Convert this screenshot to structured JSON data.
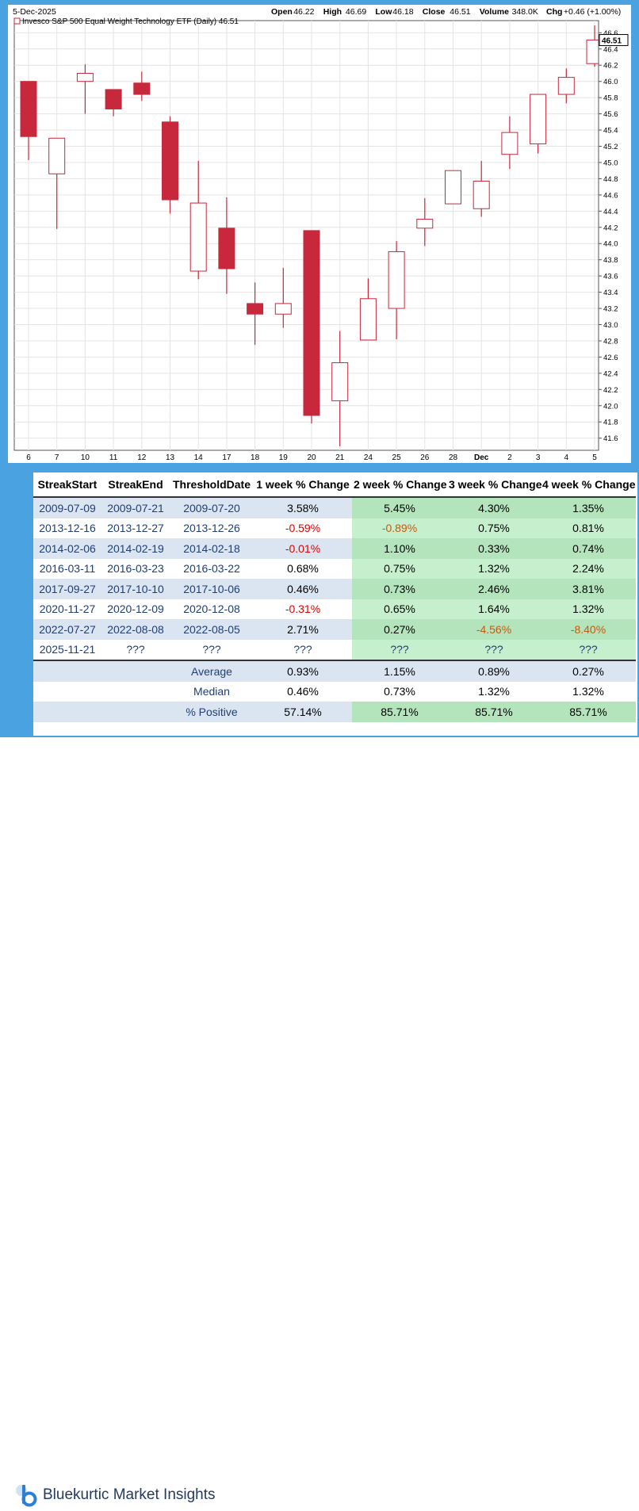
{
  "header": {
    "date": "5-Dec-2025",
    "open_label": "Open",
    "open": "46.22",
    "high_label": "High",
    "high": "46.69",
    "low_label": "Low",
    "low": "46.18",
    "close_label": "Close",
    "close": "46.51",
    "volume_label": "Volume",
    "volume": "348.0K",
    "chg_label": "Chg",
    "chg": "+0.46 (+1.00%)",
    "legend": "Invesco S&P 500 Equal Weight Technology ETF (Daily) 46.51",
    "last_price": "46.51"
  },
  "chart_data": {
    "type": "candlestick",
    "title": "Invesco S&P 500 Equal Weight Technology ETF (Daily)",
    "ylim": [
      41.45,
      46.75
    ],
    "yticks": [
      41.6,
      41.8,
      42.0,
      42.2,
      42.4,
      42.6,
      42.8,
      43.0,
      43.2,
      43.4,
      43.6,
      43.8,
      44.0,
      44.2,
      44.4,
      44.6,
      44.8,
      45.0,
      45.2,
      45.4,
      45.6,
      45.8,
      46.0,
      46.2,
      46.4,
      46.6
    ],
    "ytick_labels": [
      "41.6",
      "41.8",
      "42.0",
      "42.2",
      "42.4",
      "42.6",
      "42.8",
      "43.0",
      "43.2",
      "43.4",
      "43.6",
      "43.8",
      "44.0",
      "44.2",
      "44.4",
      "44.6",
      "44.8",
      "45.0",
      "45.2",
      "45.4",
      "45.6",
      "45.8",
      "46.0",
      "46.2",
      "46.4",
      "46.6"
    ],
    "x_labels": [
      "6",
      "7",
      "10",
      "11",
      "12",
      "13",
      "14",
      "17",
      "18",
      "19",
      "20",
      "21",
      "24",
      "25",
      "26",
      "28",
      "Dec",
      "2",
      "3",
      "4",
      "5"
    ],
    "candles": [
      {
        "date": "6",
        "open": 46.0,
        "high": 46.0,
        "low": 45.03,
        "close": 45.32
      },
      {
        "date": "7",
        "open": 44.86,
        "high": 45.3,
        "low": 44.18,
        "close": 45.3
      },
      {
        "date": "10",
        "open": 46.0,
        "high": 46.21,
        "low": 45.6,
        "close": 46.1
      },
      {
        "date": "11",
        "open": 45.9,
        "high": 45.9,
        "low": 45.57,
        "close": 45.66
      },
      {
        "date": "12",
        "open": 45.98,
        "high": 46.12,
        "low": 45.76,
        "close": 45.84
      },
      {
        "date": "13",
        "open": 45.5,
        "high": 45.57,
        "low": 44.37,
        "close": 44.54
      },
      {
        "date": "14",
        "open": 43.66,
        "high": 45.02,
        "low": 43.56,
        "close": 44.5
      },
      {
        "date": "17",
        "open": 44.19,
        "high": 44.57,
        "low": 43.38,
        "close": 43.69
      },
      {
        "date": "18",
        "open": 43.26,
        "high": 43.52,
        "low": 42.75,
        "close": 43.13
      },
      {
        "date": "19",
        "open": 43.13,
        "high": 43.7,
        "low": 42.96,
        "close": 43.26
      },
      {
        "date": "20",
        "open": 44.16,
        "high": 44.16,
        "low": 41.78,
        "close": 41.88
      },
      {
        "date": "21",
        "open": 42.06,
        "high": 42.92,
        "low": 41.5,
        "close": 42.53
      },
      {
        "date": "24",
        "open": 42.81,
        "high": 43.57,
        "low": 42.81,
        "close": 43.32
      },
      {
        "date": "25",
        "open": 43.2,
        "high": 44.03,
        "low": 42.82,
        "close": 43.9
      },
      {
        "date": "26",
        "open": 44.19,
        "high": 44.56,
        "low": 43.97,
        "close": 44.3
      },
      {
        "date": "28",
        "open": 44.49,
        "high": 44.9,
        "low": 44.49,
        "close": 44.9
      },
      {
        "date": "Dec",
        "open": 44.43,
        "high": 45.02,
        "low": 44.33,
        "close": 44.77
      },
      {
        "date": "2",
        "open": 45.1,
        "high": 45.57,
        "low": 44.92,
        "close": 45.37
      },
      {
        "date": "3",
        "open": 45.23,
        "high": 45.84,
        "low": 45.11,
        "close": 45.84
      },
      {
        "date": "4",
        "open": 45.84,
        "high": 46.16,
        "low": 45.73,
        "close": 46.05
      },
      {
        "date": "5",
        "open": 46.22,
        "high": 46.69,
        "low": 46.18,
        "close": 46.51
      }
    ],
    "up_color": "#ffffff",
    "down_color": "#c8283c",
    "outline_color": "#c8283c"
  },
  "table": {
    "headers": [
      "StreakStart",
      "StreakEnd",
      "ThresholdDate",
      "1 week % Change",
      "2 week % Change",
      "3 week % Change",
      "4 week % Change"
    ],
    "rows": [
      [
        "2009-07-09",
        "2009-07-21",
        "2009-07-20",
        "3.58%",
        "5.45%",
        "4.30%",
        "1.35%"
      ],
      [
        "2013-12-16",
        "2013-12-27",
        "2013-12-26",
        "-0.59%",
        "-0.89%",
        "0.75%",
        "0.81%"
      ],
      [
        "2014-02-06",
        "2014-02-19",
        "2014-02-18",
        "-0.01%",
        "1.10%",
        "0.33%",
        "0.74%"
      ],
      [
        "2016-03-11",
        "2016-03-23",
        "2016-03-22",
        "0.68%",
        "0.75%",
        "1.32%",
        "2.24%"
      ],
      [
        "2017-09-27",
        "2017-10-10",
        "2017-10-06",
        "0.46%",
        "0.73%",
        "2.46%",
        "3.81%"
      ],
      [
        "2020-11-27",
        "2020-12-09",
        "2020-12-08",
        "-0.31%",
        "0.65%",
        "1.64%",
        "1.32%"
      ],
      [
        "2022-07-27",
        "2022-08-08",
        "2022-08-05",
        "2.71%",
        "0.27%",
        "-4.56%",
        "-8.40%"
      ],
      [
        "2025-11-21",
        "???",
        "???",
        "???",
        "???",
        "???",
        "???"
      ]
    ],
    "summary": [
      {
        "label": "Average",
        "values": [
          "0.93%",
          "1.15%",
          "0.89%",
          "0.27%"
        ]
      },
      {
        "label": "Median",
        "values": [
          "0.46%",
          "0.73%",
          "1.32%",
          "1.32%"
        ]
      },
      {
        "label": "% Positive",
        "values": [
          "57.14%",
          "85.71%",
          "85.71%",
          "85.71%"
        ]
      }
    ],
    "negative_red": "#e00000",
    "negative_orange": "#c55a11"
  },
  "footer": {
    "brand": "Bluekurtic Market Insights",
    "brand_color": "#243a5e",
    "logo_color": "#2f7fd0"
  }
}
